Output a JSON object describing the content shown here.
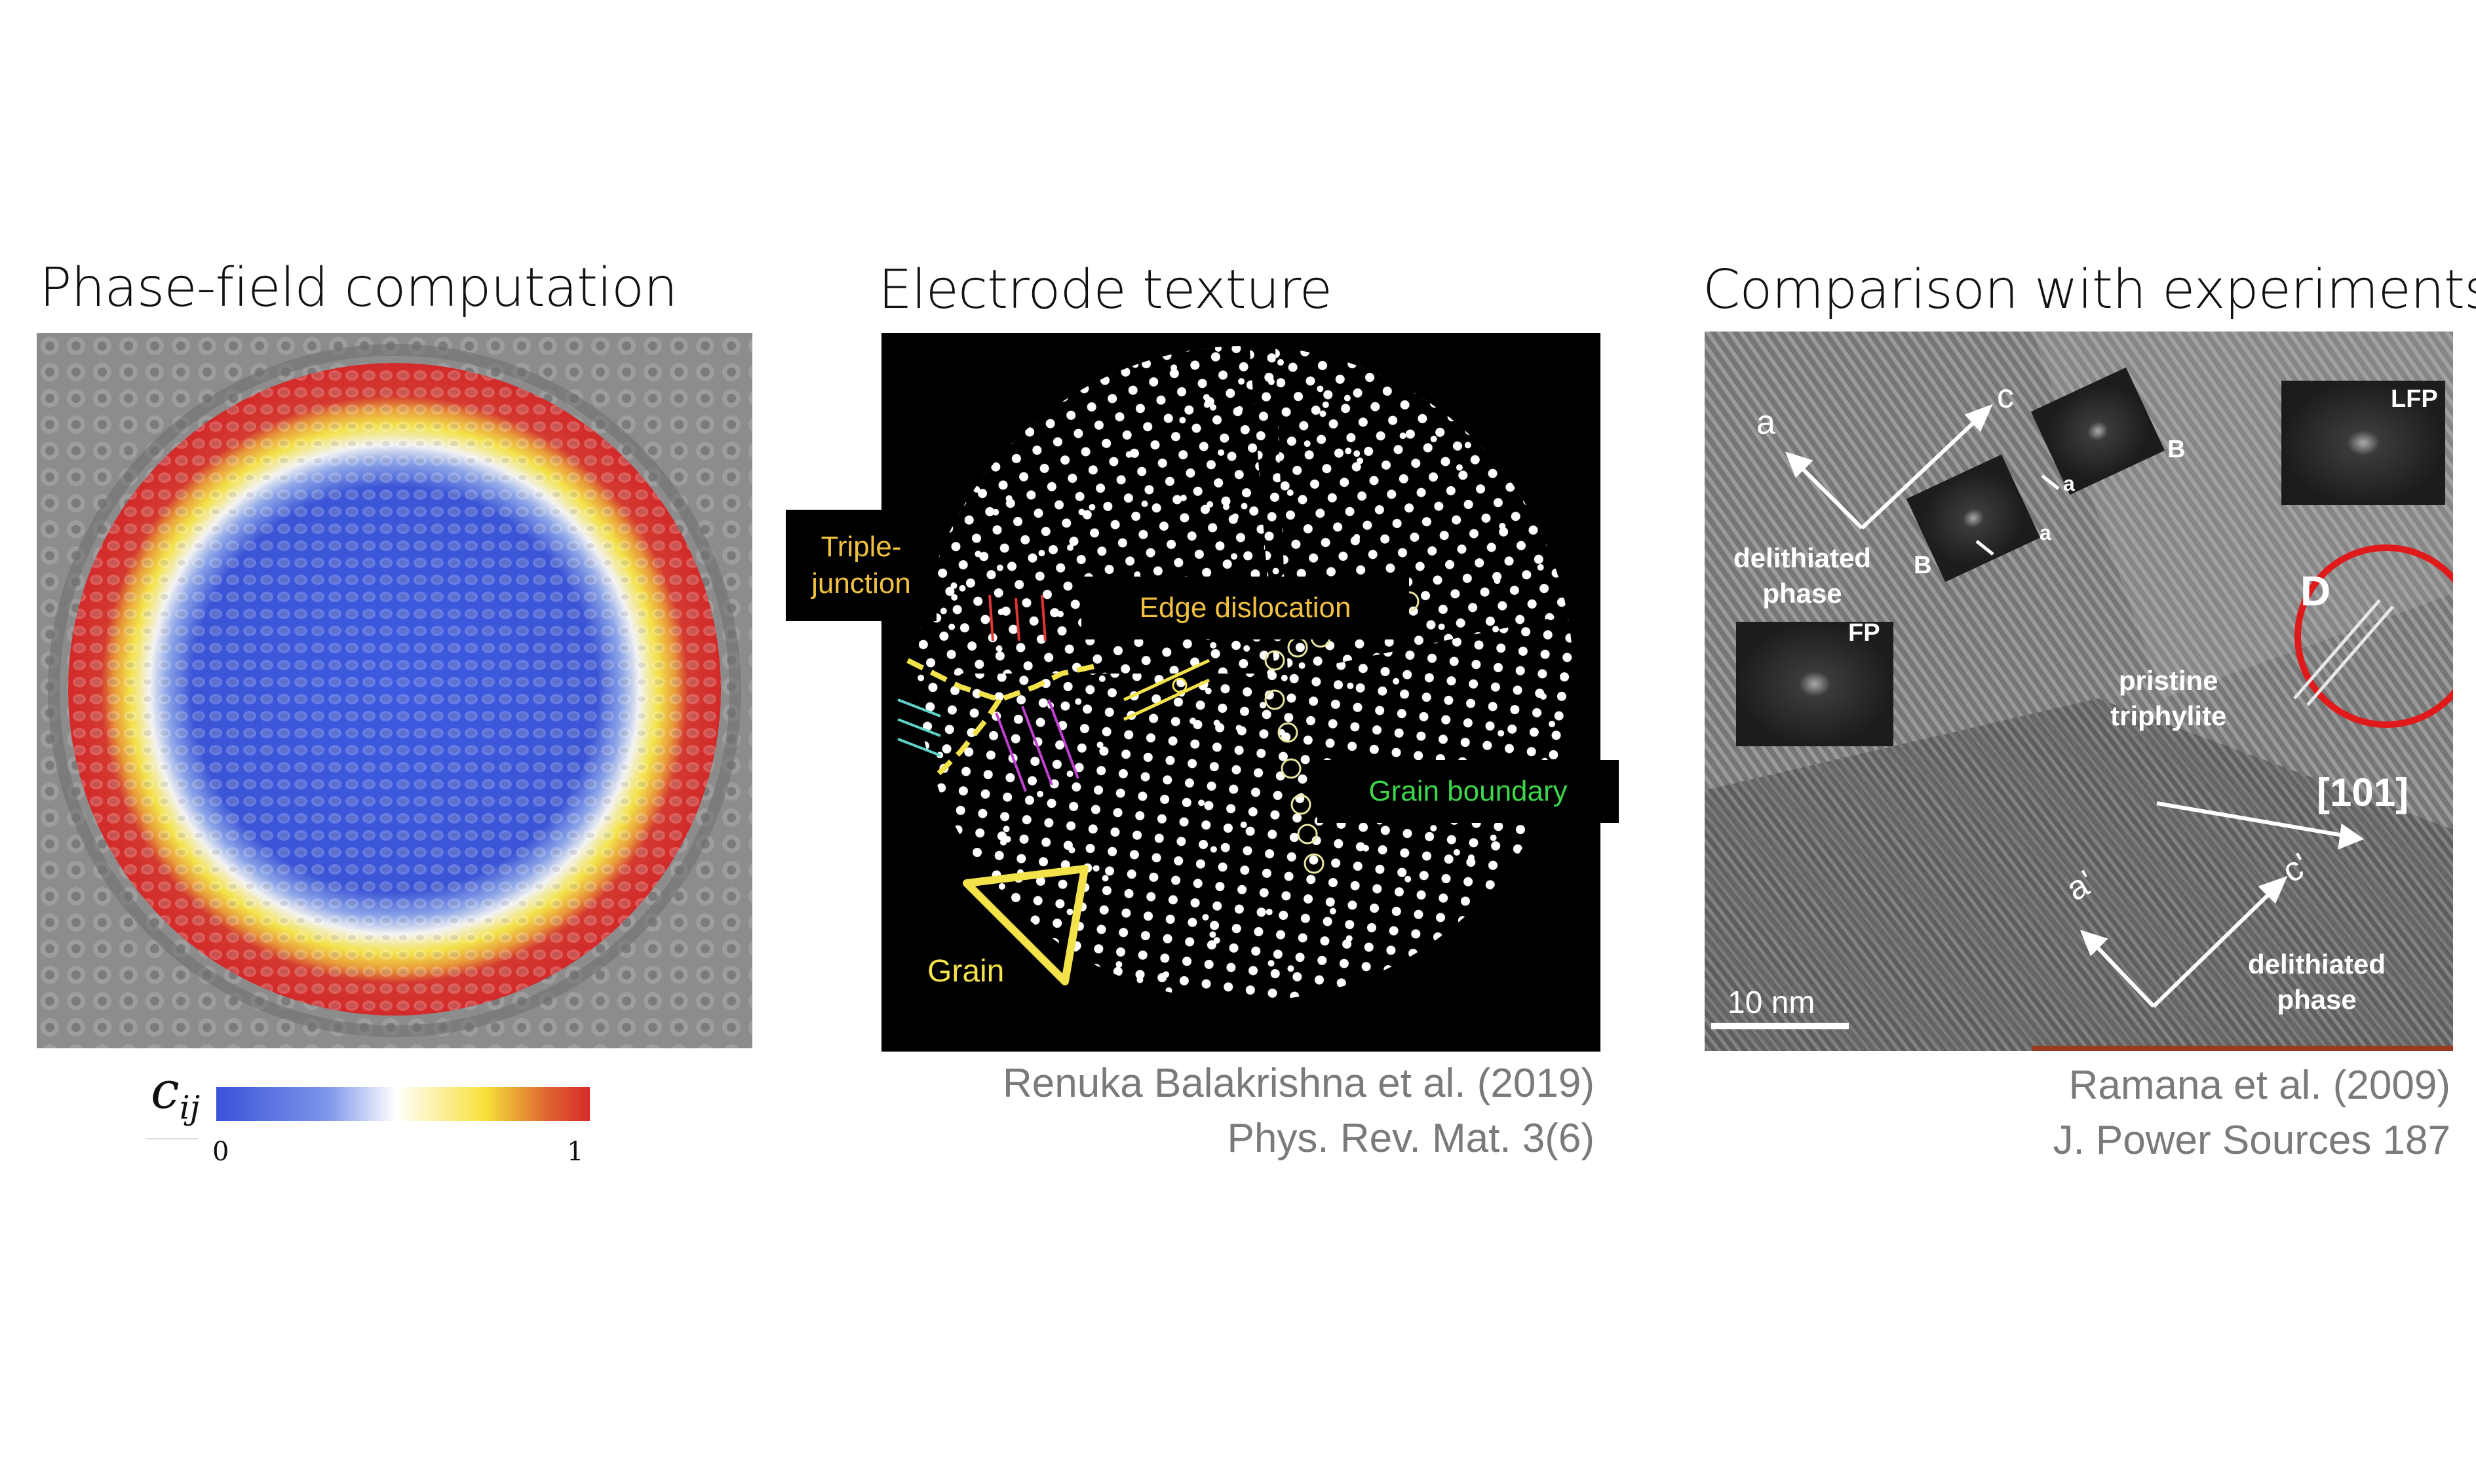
{
  "panels": {
    "left": {
      "title": "Phase-field computation",
      "colorbar": {
        "symbol": "c",
        "subscript": "ij",
        "min_label": "0",
        "max_label": "1",
        "colors": [
          "#3a52d8",
          "#ffffff",
          "#f6e13b",
          "#d62a2a"
        ]
      }
    },
    "middle": {
      "title": "Electrode texture",
      "labels": {
        "triple_junction": "Triple-\njunction",
        "edge_dislocation": "Edge dislocation",
        "grain_boundary": "Grain boundary",
        "grain": "Grain"
      },
      "caption_line1": "Renuka Balakrishna et al. (2019)",
      "caption_line2": "Phys. Rev. Mat. 3(6)"
    },
    "right": {
      "title": "Comparison with experiments",
      "labels": {
        "a": "a",
        "c": "c",
        "a_prime": "a'",
        "c_prime": "c'",
        "delithiated_phase_top": "delithiated\nphase",
        "delithiated_phase_bottom": "delithiated\nphase",
        "pristine_triphylite": "pristine\ntriphylite",
        "direction": "[101]",
        "D": "D",
        "FP": "FP",
        "LFP": "LFP",
        "B1": "B",
        "B2": "B",
        "a_inset1": "a",
        "a_inset2": "a",
        "scale_bar": "10 nm"
      },
      "caption_line1": "Ramana et al. (2009)",
      "caption_line2": "J. Power Sources 187"
    }
  }
}
